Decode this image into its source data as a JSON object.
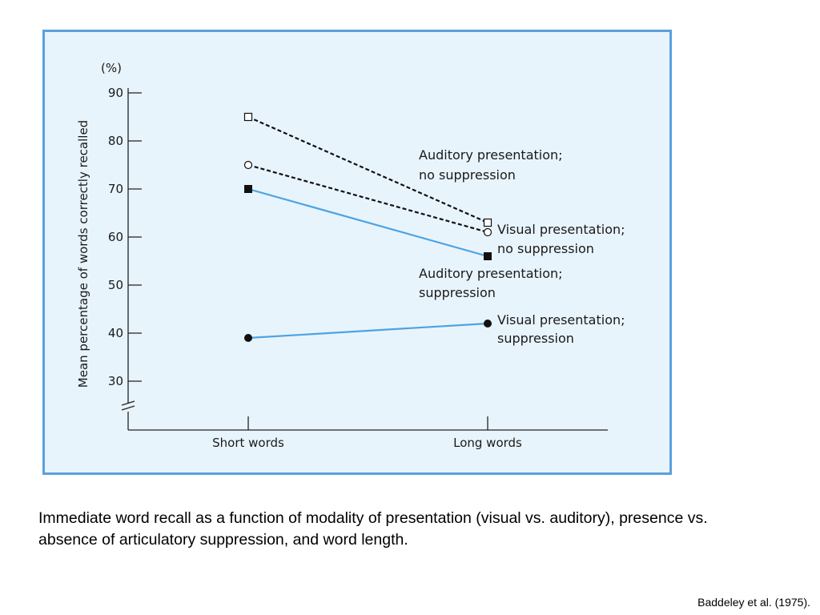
{
  "chart_data": {
    "type": "line",
    "categories": [
      "Short words",
      "Long words"
    ],
    "y_unit": "(%)",
    "ylabel": "Mean percentage of words correctly recalled",
    "xlabel": "",
    "ylim": [
      30,
      90
    ],
    "y_axis_break": true,
    "y_ticks": [
      30,
      40,
      50,
      60,
      70,
      80,
      90
    ],
    "grid": false,
    "series": [
      {
        "name": "Auditory presentation; no suppression",
        "label_lines": [
          "Auditory presentation;",
          "no suppression"
        ],
        "values": [
          85,
          63
        ],
        "marker": "open-square",
        "line_style": "dashed",
        "color": "#111111"
      },
      {
        "name": "Visual presentation; no suppression",
        "label_lines": [
          "Visual presentation;",
          "no suppression"
        ],
        "values": [
          75,
          61
        ],
        "marker": "open-circle",
        "line_style": "dashed",
        "color": "#111111"
      },
      {
        "name": "Auditory presentation; suppression",
        "label_lines": [
          "Auditory presentation;",
          "suppression"
        ],
        "values": [
          70,
          56
        ],
        "marker": "filled-square",
        "line_style": "solid",
        "color": "#4da3e3"
      },
      {
        "name": "Visual presentation; suppression",
        "label_lines": [
          "Visual presentation;",
          "suppression"
        ],
        "values": [
          39,
          42
        ],
        "marker": "filled-circle",
        "line_style": "solid",
        "color": "#4da3e3"
      }
    ]
  },
  "caption": "Immediate word recall as a function of modality of presentation (visual vs. auditory), presence vs. absence of articulatory suppression, and word length.",
  "source": "Baddeley et al. (1975).",
  "colors": {
    "panel_background": "#e8f4fc",
    "panel_border": "#5aa0dc",
    "solid_line": "#4da3e3",
    "dashed_line": "#111111"
  }
}
